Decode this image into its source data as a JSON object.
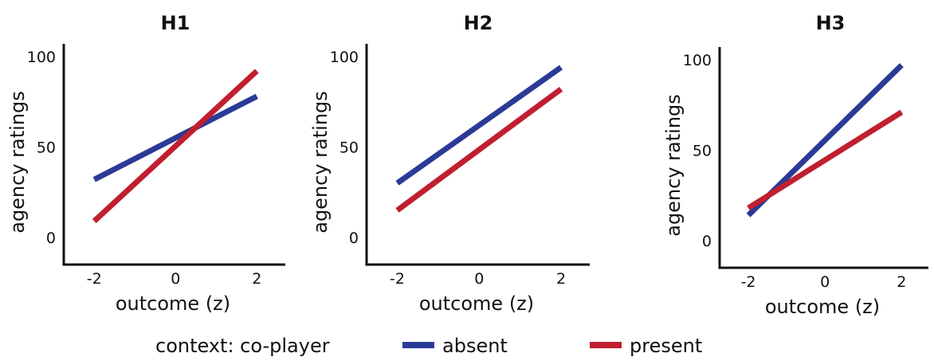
{
  "chart_data": [
    {
      "type": "line",
      "title": "H1",
      "x_label": "outcome (z)",
      "y_label": "agency ratings",
      "x": [
        -2,
        2
      ],
      "xlim": [
        -2.75,
        2.7
      ],
      "ylim": [
        -15,
        107
      ],
      "xticks": [
        -2,
        0,
        2
      ],
      "yticks": [
        0,
        50,
        100
      ],
      "legend_title": "context: co-player",
      "series": [
        {
          "name": "absent",
          "color": "#2b3a96",
          "values": [
            32,
            78
          ]
        },
        {
          "name": "present",
          "color": "#c01f2f",
          "values": [
            9,
            92
          ]
        }
      ]
    },
    {
      "type": "line",
      "title": "H2",
      "x_label": "outcome (z)",
      "y_label": "agency ratings",
      "x": [
        -2,
        2
      ],
      "xlim": [
        -2.75,
        2.7
      ],
      "ylim": [
        -15,
        107
      ],
      "xticks": [
        -2,
        0,
        2
      ],
      "yticks": [
        0,
        50,
        100
      ],
      "series": [
        {
          "color": "#2b3a96",
          "values": [
            30,
            94
          ]
        },
        {
          "color": "#c01f2f",
          "values": [
            15,
            82
          ]
        }
      ]
    },
    {
      "type": "line",
      "title": "H3",
      "x_label": "outcome (z)",
      "y_label": "agency ratings",
      "x": [
        -2,
        2
      ],
      "xlim": [
        -2.75,
        2.7
      ],
      "ylim": [
        -15,
        107
      ],
      "xticks": [
        -2,
        0,
        2
      ],
      "yticks": [
        0,
        50,
        100
      ],
      "series": [
        {
          "color": "#2b3a96",
          "values": [
            14,
            97
          ]
        },
        {
          "color": "#c01f2f",
          "values": [
            18,
            71
          ]
        }
      ]
    }
  ]
}
